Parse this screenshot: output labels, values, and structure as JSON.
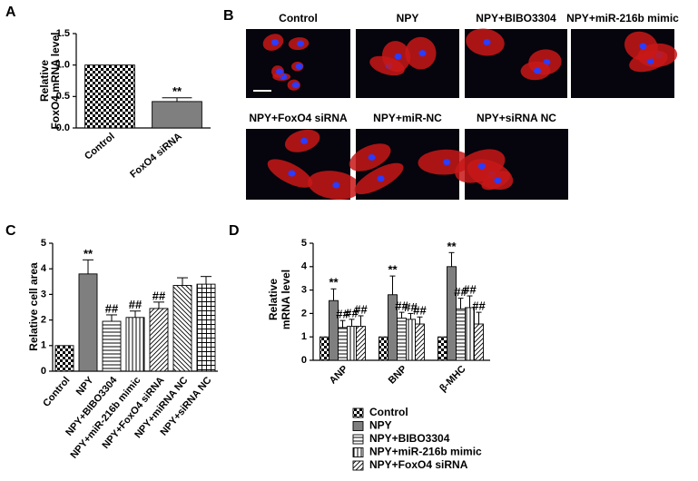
{
  "chart_data": [
    {
      "panel": "A",
      "type": "bar",
      "ylabel": [
        "Relative",
        "FoxO4 mRNA  level"
      ],
      "categories": [
        "Control",
        "FoxO4 siRNA"
      ],
      "values": [
        1.0,
        0.42
      ],
      "errors": [
        null,
        0.06
      ],
      "annotations": [
        null,
        "**"
      ],
      "patterns": [
        "checker",
        "gray"
      ],
      "ylim": [
        0,
        1.5
      ],
      "yticks": [
        {
          "value": 0,
          "label": "0.0"
        },
        {
          "value": 0.5,
          "label": "0.5"
        },
        {
          "value": 1,
          "label": "1.0"
        },
        {
          "value": 1.5,
          "label": "1.5"
        }
      ]
    },
    {
      "panel": "C",
      "type": "bar",
      "ylabel": "Relative cell area",
      "categories": [
        "Control",
        "NPY",
        "NPY+BIBO3304",
        "NPY+miR-216b mimic",
        "NPY+FoxO4 siRNA",
        "NPY+miRNA NC",
        "NPY+siRNA NC"
      ],
      "values": [
        1.0,
        3.8,
        1.95,
        2.1,
        2.45,
        3.35,
        3.4
      ],
      "errors": [
        null,
        0.55,
        0.25,
        0.25,
        0.25,
        0.3,
        0.3
      ],
      "annotations": [
        null,
        "**",
        "##",
        "##",
        "##",
        null,
        null
      ],
      "patterns": [
        "checker",
        "gray",
        "hlines",
        "vlines",
        "diag",
        "diagb",
        "grid"
      ],
      "ylim": [
        0,
        5
      ],
      "yticks": [
        0,
        1,
        2,
        3,
        4,
        5
      ]
    },
    {
      "panel": "D",
      "type": "grouped_bar",
      "ylabel": [
        "Relative",
        "mRNA  level"
      ],
      "categories": [
        "ANP",
        "BNP",
        "β-MHC"
      ],
      "series": [
        {
          "name": "Control",
          "pattern": "checker",
          "values": [
            1,
            1,
            1
          ]
        },
        {
          "name": "NPY",
          "pattern": "gray",
          "values": [
            2.55,
            2.8,
            4.0
          ],
          "errors": [
            0.5,
            0.8,
            0.6
          ],
          "annotations": [
            "**",
            "**",
            "**"
          ]
        },
        {
          "name": "NPY+BIBO3304",
          "pattern": "hlines",
          "values": [
            1.4,
            1.8,
            2.2
          ],
          "errors": [
            0.3,
            0.25,
            0.45
          ],
          "annotations": [
            "##",
            "##",
            "##"
          ]
        },
        {
          "name": "NPY+miR-216b mimic",
          "pattern": "vlines",
          "values": [
            1.45,
            1.75,
            2.25
          ],
          "errors": [
            0.3,
            0.25,
            0.5
          ],
          "annotations": [
            "##",
            "##",
            "##"
          ]
        },
        {
          "name": "NPY+FoxO4 siRNA",
          "pattern": "diag",
          "values": [
            1.45,
            1.55,
            1.55
          ],
          "errors": [
            0.45,
            0.3,
            0.5
          ],
          "annotations": [
            "##",
            "##",
            "##"
          ]
        }
      ],
      "ylim": [
        0,
        5
      ],
      "yticks": [
        0,
        1,
        2,
        3,
        4,
        5
      ]
    }
  ],
  "panel_b": {
    "label": "B",
    "images": [
      {
        "label": "Control"
      },
      {
        "label": "NPY"
      },
      {
        "label": "NPY+BIBO3304"
      },
      {
        "label": "NPY+miR-216b mimic"
      },
      {
        "label": "NPY+FoxO4 siRNA"
      },
      {
        "label": "NPY+miR-NC"
      },
      {
        "label": "NPY+siRNA NC"
      }
    ]
  }
}
